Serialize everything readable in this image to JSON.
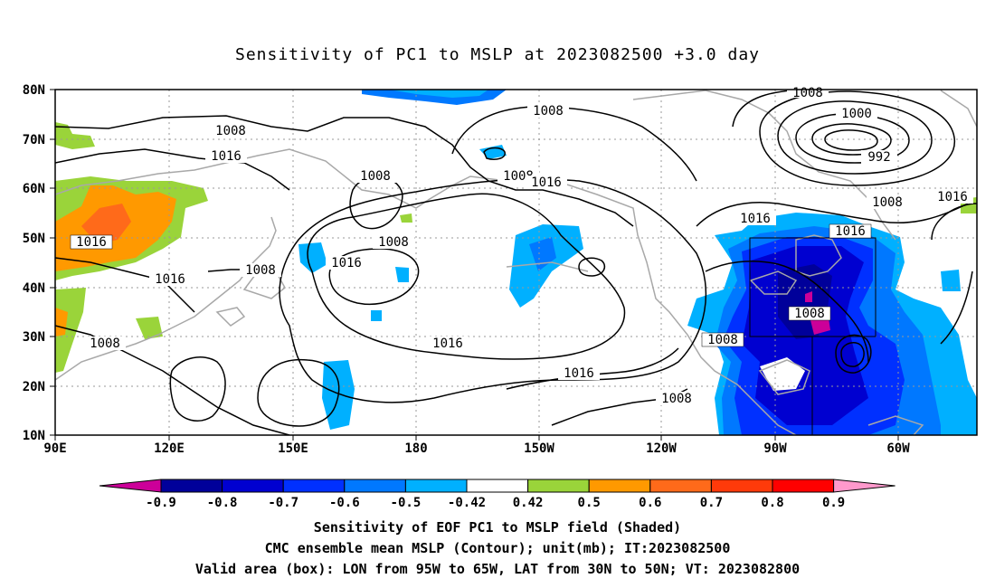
{
  "title": "Sensitivity of PC1 to MSLP at 2023082500 +3.0 day",
  "map": {
    "lon_labels": [
      "90E",
      "120E",
      "150E",
      "180",
      "150W",
      "120W",
      "90W",
      "60W"
    ],
    "lat_labels": [
      "10N",
      "20N",
      "30N",
      "40N",
      "50N",
      "60N",
      "70N",
      "80N"
    ],
    "contour_labels": [
      "1008",
      "1016",
      "1008",
      "1008",
      "1016",
      "1016",
      "1008",
      "1016",
      "1008",
      "1016",
      "1008",
      "1008",
      "1016",
      "1016",
      "1016",
      "1008",
      "1008",
      "1016",
      "1008",
      "1000",
      "992",
      "1008",
      "1016",
      "1008"
    ],
    "valid_box": {
      "lon_from": "95W",
      "lon_to": "65W",
      "lat_from": "30N",
      "lat_to": "50N"
    }
  },
  "colorbar": {
    "labels": [
      "-0.9",
      "-0.8",
      "-0.7",
      "-0.6",
      "-0.5",
      "-0.42",
      "0.42",
      "0.5",
      "0.6",
      "0.7",
      "0.8",
      "0.9"
    ],
    "colors": [
      "#cc0099",
      "#00009a",
      "#0000d0",
      "#0030ff",
      "#0078ff",
      "#00b0ff",
      "#ffffff",
      "#9ad43a",
      "#ff9900",
      "#ff6a1a",
      "#ff3a0a",
      "#ff0000",
      "#ff99cc"
    ]
  },
  "captions": {
    "line1": "Sensitivity of EOF PC1 to MSLP field (Shaded)",
    "line2": "CMC ensemble mean MSLP (Contour); unit(mb); IT:2023082500",
    "line3": "Valid area (box): LON from 95W to 65W, LAT from 30N to 50N; VT: 2023082800"
  }
}
